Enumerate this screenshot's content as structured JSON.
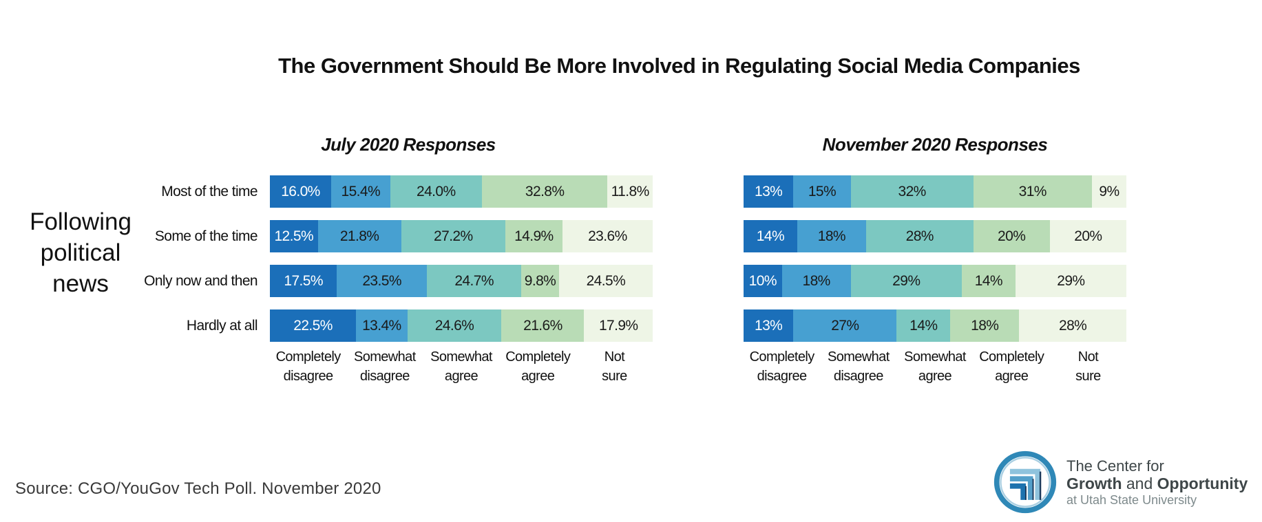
{
  "title": "The Government Should Be More Involved in Regulating Social Media Companies",
  "group_label": "Following political news",
  "source": "Source: CGO/YouGov Tech Poll. November 2020",
  "logo": {
    "line1": "The Center for",
    "line2_bold1": "Growth",
    "line2_mid": " and ",
    "line2_bold2": "Opportunity",
    "line3": "at Utah State University",
    "ring_color": "#2f88b7",
    "band_colors": [
      "#8fc3dd",
      "#54a0ca",
      "#1d72ae"
    ]
  },
  "colors": {
    "completely_disagree": "#1b6fb9",
    "somewhat_disagree": "#47a0d1",
    "somewhat_agree": "#7cc8c1",
    "completely_agree": "#b9dcb6",
    "not_sure": "#eef5e6",
    "value_text_on_dark": "#ffffff",
    "value_text_on_light": "#1a1a1a"
  },
  "chart_data": [
    {
      "type": "bar",
      "subtype": "stacked-horizontal",
      "title": "July 2020 Responses",
      "unit": "percent",
      "xlim": [
        0,
        100
      ],
      "show_row_labels": true,
      "stack_segments": [
        "Completely disagree",
        "Somewhat disagree",
        "Somewhat agree",
        "Completely agree",
        "Not sure"
      ],
      "segment_label_lines": [
        [
          "Completely",
          "disagree"
        ],
        [
          "Somewhat",
          "disagree"
        ],
        [
          "Somewhat",
          "agree"
        ],
        [
          "Completely",
          "agree"
        ],
        [
          "Not",
          "sure"
        ]
      ],
      "segment_colors": [
        "#1b6fb9",
        "#47a0d1",
        "#7cc8c1",
        "#b9dcb6",
        "#eef5e6"
      ],
      "categories": [
        "Most of the time",
        "Some of the time",
        "Only now and then",
        "Hardly at all"
      ],
      "rows": [
        {
          "label": "Most of the time",
          "values": [
            16.0,
            15.4,
            24.0,
            32.8,
            11.8
          ],
          "display": [
            "16.0%",
            "15.4%",
            "24.0%",
            "32.8%",
            "11.8%"
          ]
        },
        {
          "label": "Some of the time",
          "values": [
            12.5,
            21.8,
            27.2,
            14.9,
            23.6
          ],
          "display": [
            "12.5%",
            "21.8%",
            "27.2%",
            "14.9%",
            "23.6%"
          ]
        },
        {
          "label": "Only now and then",
          "values": [
            17.5,
            23.5,
            24.7,
            9.8,
            24.5
          ],
          "display": [
            "17.5%",
            "23.5%",
            "24.7%",
            "9.8%",
            "24.5%"
          ]
        },
        {
          "label": "Hardly at all",
          "values": [
            22.5,
            13.4,
            24.6,
            21.6,
            17.9
          ],
          "display": [
            "22.5%",
            "13.4%",
            "24.6%",
            "21.6%",
            "17.9%"
          ]
        }
      ]
    },
    {
      "type": "bar",
      "subtype": "stacked-horizontal",
      "title": "November 2020 Responses",
      "unit": "percent",
      "xlim": [
        0,
        100
      ],
      "show_row_labels": false,
      "stack_segments": [
        "Completely disagree",
        "Somewhat disagree",
        "Somewhat agree",
        "Completely agree",
        "Not sure"
      ],
      "segment_label_lines": [
        [
          "Completely",
          "disagree"
        ],
        [
          "Somewhat",
          "disagree"
        ],
        [
          "Somewhat",
          "agree"
        ],
        [
          "Completely",
          "agree"
        ],
        [
          "Not",
          "sure"
        ]
      ],
      "segment_colors": [
        "#1b6fb9",
        "#47a0d1",
        "#7cc8c1",
        "#b9dcb6",
        "#eef5e6"
      ],
      "categories": [
        "Most of the time",
        "Some of the time",
        "Only now and then",
        "Hardly at all"
      ],
      "rows": [
        {
          "label": "Most of the time",
          "values": [
            13,
            15,
            32,
            31,
            9
          ],
          "display": [
            "13%",
            "15%",
            "32%",
            "31%",
            "9%"
          ]
        },
        {
          "label": "Some of the time",
          "values": [
            14,
            18,
            28,
            20,
            20
          ],
          "display": [
            "14%",
            "18%",
            "28%",
            "20%",
            "20%"
          ]
        },
        {
          "label": "Only now and then",
          "values": [
            10,
            18,
            29,
            14,
            29
          ],
          "display": [
            "10%",
            "18%",
            "29%",
            "14%",
            "29%"
          ]
        },
        {
          "label": "Hardly at all",
          "values": [
            13,
            27,
            14,
            18,
            28
          ],
          "display": [
            "13%",
            "27%",
            "14%",
            "18%",
            "28%"
          ]
        }
      ]
    }
  ]
}
